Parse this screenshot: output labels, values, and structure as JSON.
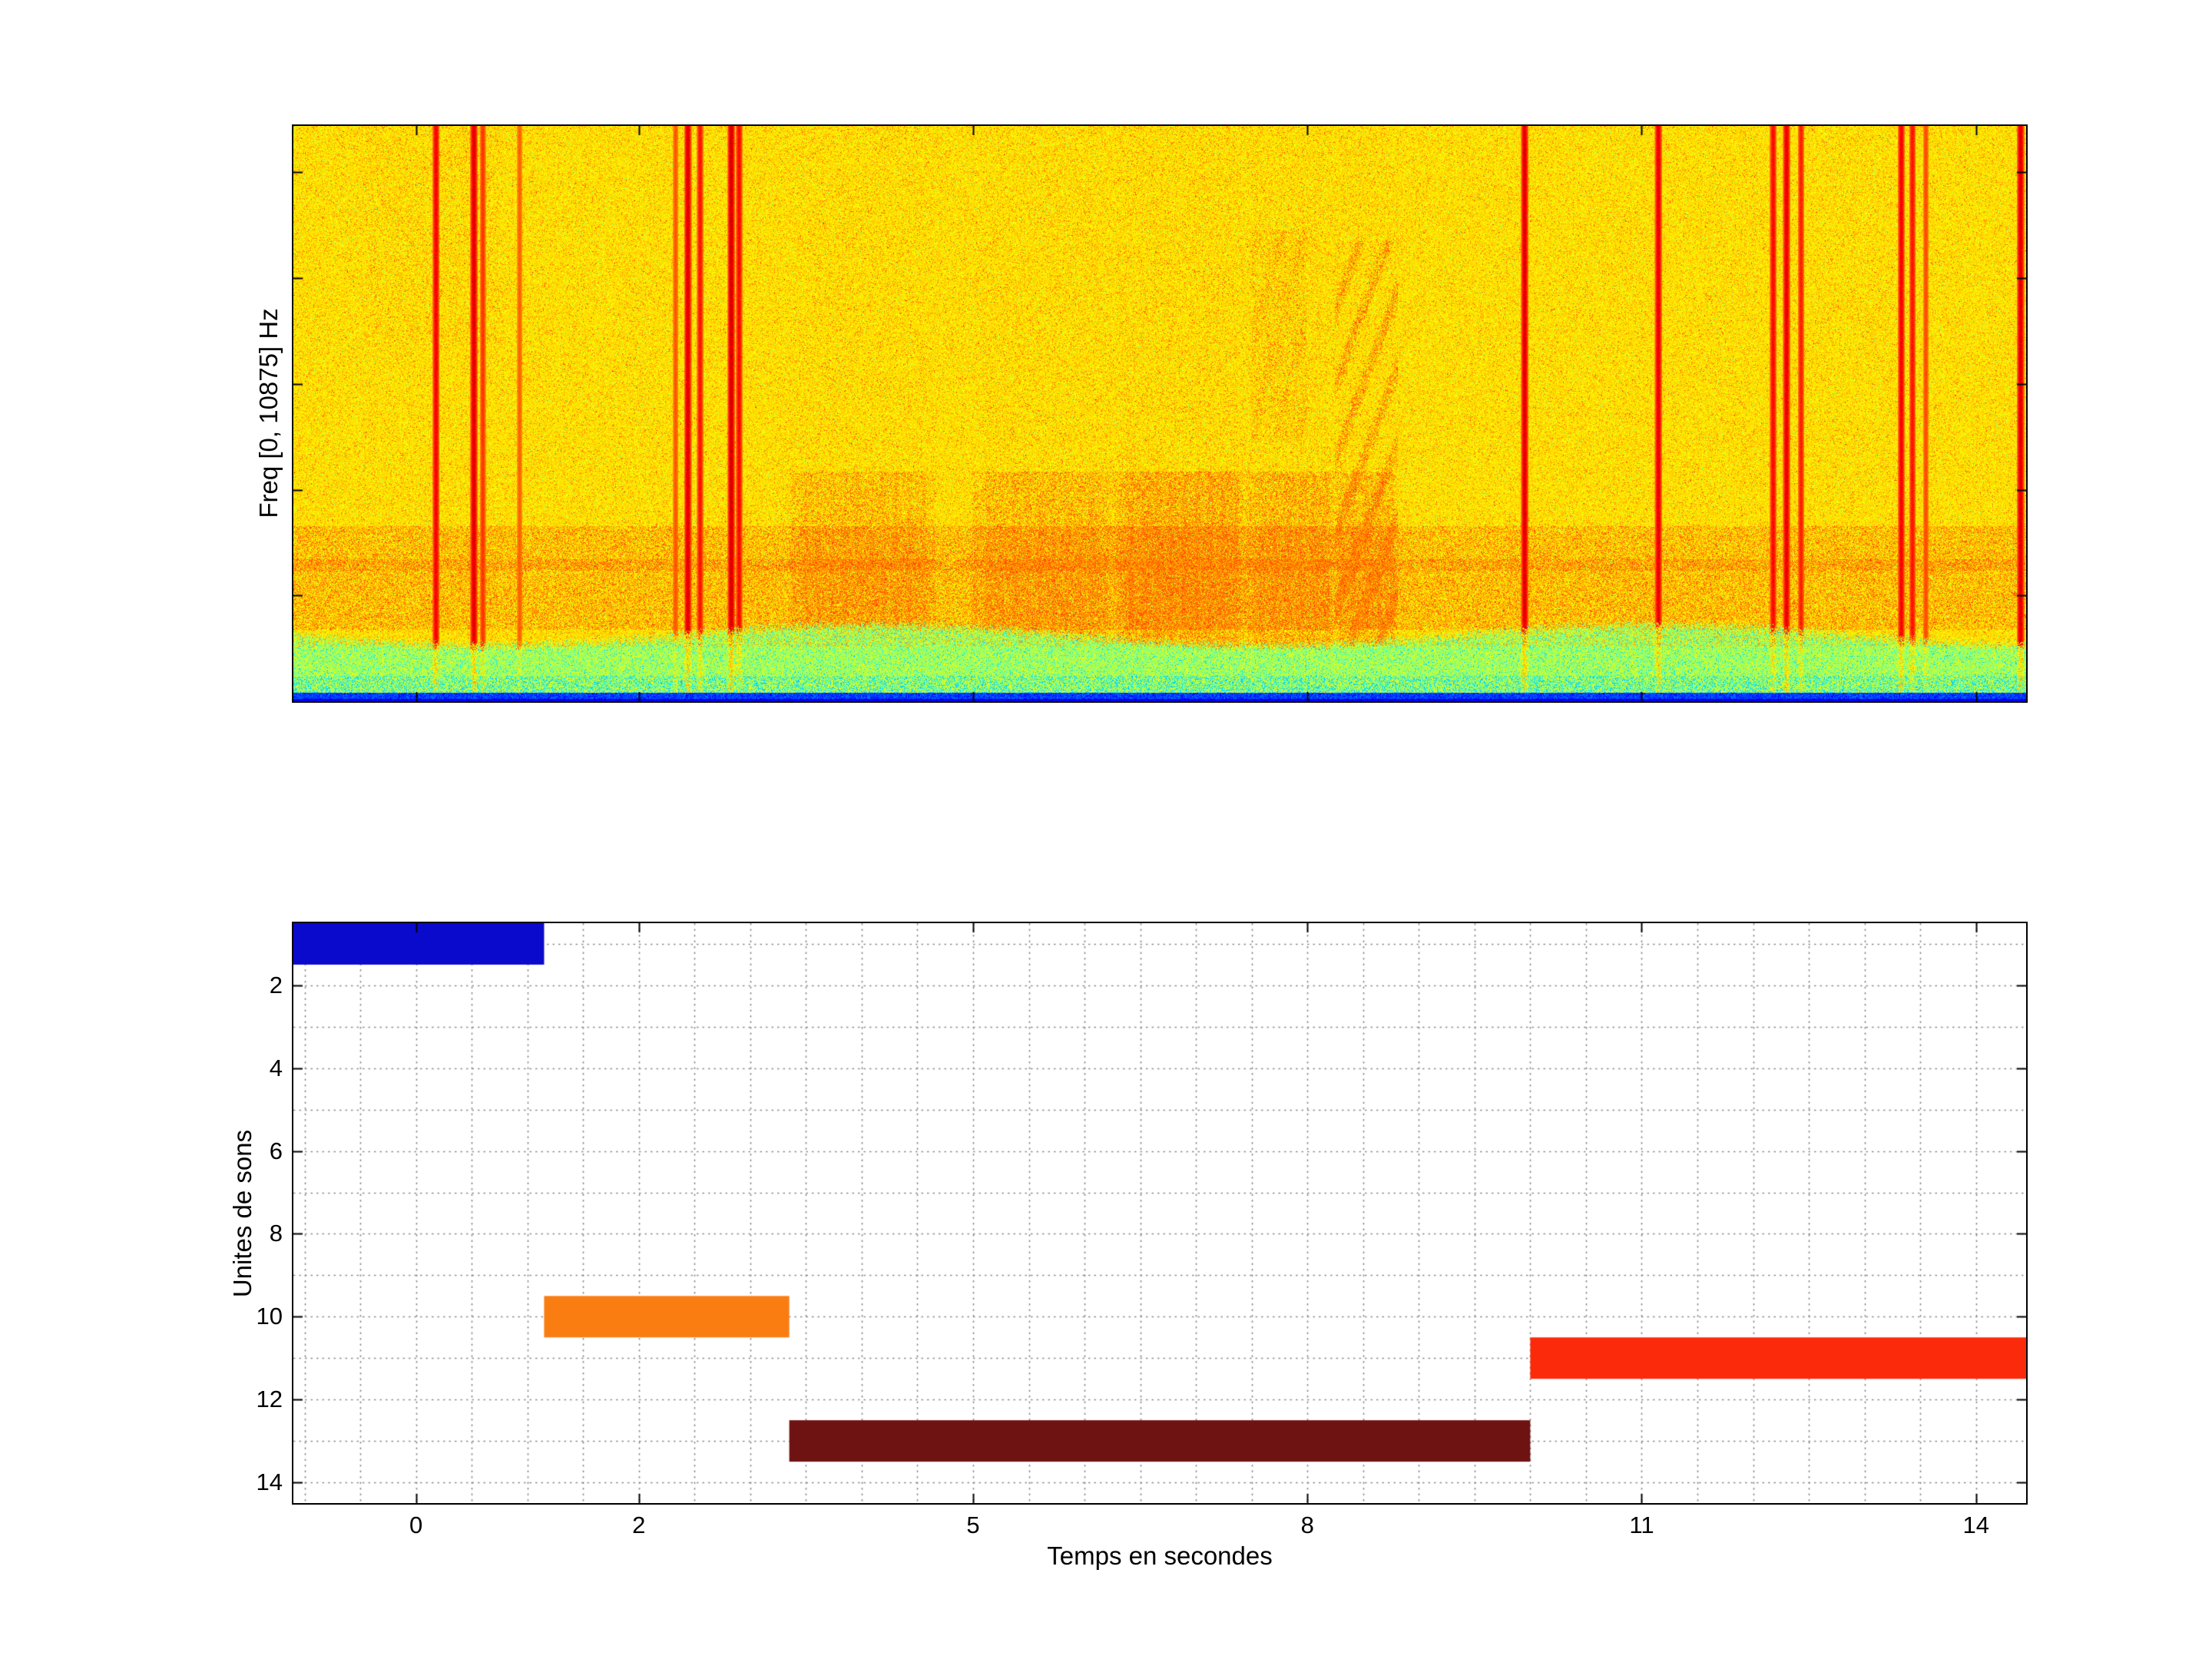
{
  "chart_data": [
    {
      "type": "heatmap",
      "name": "spectrogram",
      "colormap": "jet",
      "ylabel": "Freq [0, 10875] Hz",
      "freq_range_hz": [
        0,
        10875
      ],
      "time_range": [
        -1.1,
        14.45
      ],
      "x_ticks": [
        0,
        2,
        5,
        8,
        11,
        14
      ],
      "y_ticks_hz": [
        2000,
        4000,
        6000,
        8000,
        10000
      ],
      "features": {
        "vertical_lines": [
          {
            "t": 0.18,
            "strength": 0.8
          },
          {
            "t": 0.52,
            "strength": 0.9
          },
          {
            "t": 0.6,
            "strength": 0.55
          },
          {
            "t": 0.93,
            "strength": 0.35
          },
          {
            "t": 2.33,
            "strength": 0.4
          },
          {
            "t": 2.44,
            "strength": 0.9
          },
          {
            "t": 2.55,
            "strength": 0.7
          },
          {
            "t": 2.83,
            "strength": 0.95
          },
          {
            "t": 2.9,
            "strength": 0.75
          },
          {
            "t": 9.95,
            "strength": 0.9
          },
          {
            "t": 11.15,
            "strength": 0.85
          },
          {
            "t": 12.18,
            "strength": 0.75
          },
          {
            "t": 12.3,
            "strength": 0.85
          },
          {
            "t": 12.43,
            "strength": 0.65
          },
          {
            "t": 13.33,
            "strength": 0.8
          },
          {
            "t": 13.43,
            "strength": 0.7
          },
          {
            "t": 13.55,
            "strength": 0.45
          },
          {
            "t": 14.4,
            "strength": 0.9
          }
        ],
        "energy_blobs": [
          {
            "t0": 3.35,
            "t1": 4.65,
            "strength": 0.5
          },
          {
            "t0": 5.0,
            "t1": 6.25,
            "strength": 0.55
          },
          {
            "t0": 6.25,
            "t1": 7.45,
            "strength": 0.8
          },
          {
            "t0": 7.45,
            "t1": 8.25,
            "strength": 0.65
          },
          {
            "t0": 8.25,
            "t1": 8.8,
            "strength": 0.55,
            "chevron": true
          }
        ],
        "low_band": {
          "f0": 0.695,
          "f1": 0.875
        },
        "green_band": {
          "f0": 0.885
        },
        "baseline_colors": [
          "#000080",
          "#00CCFF"
        ]
      }
    },
    {
      "type": "bar",
      "name": "sound-unit-segmentation",
      "orientation": "horizontal",
      "xlabel": "Temps en secondes",
      "ylabel": "Unites de sons",
      "x_range": [
        -1.1,
        14.45
      ],
      "y_range": [
        0.5,
        14.5
      ],
      "y_axis_reversed": true,
      "x_ticks": [
        0,
        2,
        5,
        8,
        11,
        14
      ],
      "y_ticks": [
        2,
        4,
        6,
        8,
        10,
        12,
        14
      ],
      "grid": {
        "style": "dotted",
        "color": "#8C8C8C",
        "x_step": 0.5,
        "y_step": 1
      },
      "bar_half_height": 0.5,
      "segments": [
        {
          "sound_unit": 1,
          "start_s": -1.1,
          "end_s": 1.15,
          "color": "#0A0ACD"
        },
        {
          "sound_unit": 10,
          "start_s": 1.15,
          "end_s": 3.35,
          "color": "#FA7D12"
        },
        {
          "sound_unit": 13,
          "start_s": 3.35,
          "end_s": 10.0,
          "color": "#6E1212"
        },
        {
          "sound_unit": 11,
          "start_s": 10.0,
          "end_s": 14.45,
          "color": "#FA2A0A"
        }
      ]
    }
  ]
}
